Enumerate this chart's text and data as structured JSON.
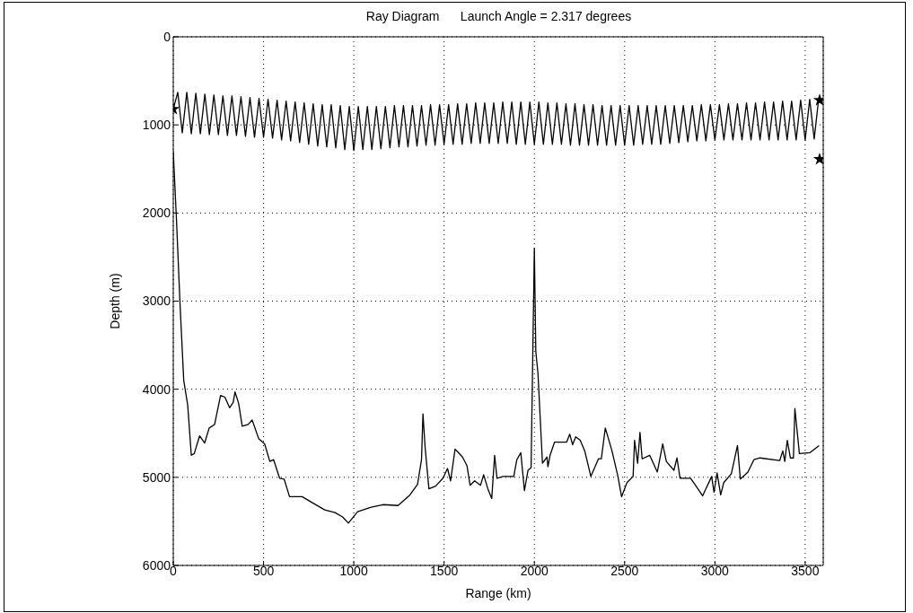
{
  "chart_data": {
    "type": "line",
    "title": "Ray Diagram      Launch Angle = 2.317 degrees",
    "xlabel": "Range (km)",
    "ylabel": "Depth (m)",
    "xlim": [
      0,
      3600
    ],
    "xticks": [
      0,
      500,
      1000,
      1500,
      2000,
      2500,
      3000,
      3500
    ],
    "ylim": [
      6000,
      0
    ],
    "yticks": [
      0,
      1000,
      2000,
      3000,
      4000,
      5000,
      6000
    ],
    "grid": true,
    "line_style": "solid",
    "series": [
      {
        "color": "#000000",
        "x": [
          0,
          25,
          50,
          75,
          100,
          125,
          150,
          175,
          200,
          225,
          250,
          275,
          300,
          325,
          350,
          375,
          400,
          425,
          450,
          475,
          500,
          525,
          550,
          575,
          600,
          625,
          650,
          675,
          700,
          725,
          750,
          775,
          800,
          825,
          850,
          875,
          900,
          925,
          950,
          975,
          1000,
          1025,
          1050,
          1075,
          1100,
          1125,
          1150,
          1175,
          1200,
          1225,
          1250,
          1275,
          1300,
          1325,
          1350,
          1375,
          1400,
          1425,
          1450,
          1475,
          1500,
          1525,
          1550,
          1575,
          1600,
          1625,
          1650,
          1675,
          1700,
          1725,
          1750,
          1775,
          1800,
          1825,
          1850,
          1875,
          1900,
          1925,
          1950,
          1975,
          2000,
          2025,
          2050,
          2075,
          2100,
          2125,
          2150,
          2175,
          2200,
          2225,
          2250,
          2275,
          2300,
          2325,
          2350,
          2375,
          2400,
          2425,
          2450,
          2475,
          2500,
          2525,
          2550,
          2575,
          2600,
          2625,
          2650,
          2675,
          2700,
          2725,
          2750,
          2775,
          2800,
          2825,
          2850,
          2875,
          2900,
          2925,
          2950,
          2975,
          3000,
          3025,
          3050,
          3075,
          3100,
          3125,
          3150,
          3175,
          3200,
          3225,
          3250,
          3275,
          3300,
          3325,
          3350,
          3375,
          3400,
          3425,
          3450,
          3475,
          3500,
          3525,
          3550,
          3575
        ],
        "values": [
          820,
          630,
          1090,
          630,
          1100,
          640,
          1100,
          650,
          1110,
          660,
          1110,
          670,
          1120,
          670,
          1120,
          680,
          1130,
          690,
          1140,
          700,
          1140,
          710,
          1150,
          720,
          1170,
          730,
          1180,
          740,
          1200,
          750,
          1220,
          760,
          1240,
          770,
          1250,
          770,
          1260,
          780,
          1280,
          790,
          1290,
          790,
          1280,
          790,
          1280,
          790,
          1270,
          790,
          1260,
          780,
          1250,
          780,
          1250,
          780,
          1240,
          780,
          1230,
          770,
          1230,
          770,
          1220,
          770,
          1220,
          760,
          1220,
          760,
          1210,
          750,
          1210,
          750,
          1210,
          750,
          1210,
          740,
          1210,
          740,
          1220,
          740,
          1220,
          740,
          1220,
          740,
          1220,
          750,
          1220,
          750,
          1220,
          760,
          1230,
          760,
          1230,
          770,
          1230,
          770,
          1230,
          780,
          1230,
          780,
          1230,
          780,
          1230,
          780,
          1230,
          780,
          1220,
          780,
          1220,
          780,
          1220,
          780,
          1210,
          780,
          1200,
          780,
          1190,
          780,
          1180,
          770,
          1180,
          770,
          1170,
          770,
          1170,
          760,
          1170,
          760,
          1170,
          750,
          1170,
          750,
          1170,
          740,
          1170,
          740,
          1170,
          730,
          1170,
          730,
          1170,
          720,
          1170,
          710,
          1160,
          700
        ]
      },
      {
        "color": "#000000",
        "x": [
          0,
          17,
          37,
          58,
          80,
          100,
          116,
          146,
          174,
          199,
          229,
          262,
          286,
          312,
          332,
          342,
          362,
          382,
          415,
          437,
          473,
          506,
          535,
          556,
          589,
          614,
          644,
          714,
          764,
          839,
          896,
          938,
          970,
          1021,
          1096,
          1162,
          1245,
          1311,
          1353,
          1375,
          1383,
          1395,
          1416,
          1453,
          1494,
          1519,
          1536,
          1561,
          1602,
          1627,
          1644,
          1669,
          1702,
          1719,
          1744,
          1764,
          1780,
          1793,
          1826,
          1886,
          1903,
          1925,
          1945,
          1965,
          1982,
          2000,
          2008,
          2020,
          2045,
          2070,
          2075,
          2087,
          2112,
          2179,
          2196,
          2212,
          2229,
          2254,
          2279,
          2313,
          2355,
          2371,
          2393,
          2430,
          2463,
          2483,
          2513,
          2547,
          2555,
          2572,
          2585,
          2597,
          2639,
          2681,
          2711,
          2731,
          2773,
          2790,
          2807,
          2865,
          2882,
          2932,
          2982,
          2995,
          3012,
          3032,
          3049,
          3091,
          3125,
          3141,
          3183,
          3216,
          3250,
          3359,
          3376,
          3387,
          3401,
          3418,
          3435,
          3443,
          3468,
          3527,
          3577
        ],
        "values": [
          1300,
          2040,
          3010,
          3900,
          4180,
          4750,
          4730,
          4530,
          4610,
          4440,
          4400,
          4070,
          4090,
          4210,
          4150,
          4030,
          4160,
          4420,
          4400,
          4350,
          4560,
          4620,
          4820,
          4800,
          5010,
          5020,
          5220,
          5220,
          5280,
          5370,
          5400,
          5450,
          5520,
          5390,
          5340,
          5310,
          5320,
          5200,
          5080,
          4800,
          4280,
          4660,
          5130,
          5100,
          5010,
          4900,
          5040,
          4680,
          4770,
          4870,
          5090,
          5040,
          5090,
          4970,
          5140,
          5240,
          4750,
          5010,
          4990,
          4990,
          4800,
          4720,
          5150,
          4920,
          4890,
          2400,
          3570,
          3820,
          4840,
          4770,
          4880,
          4750,
          4600,
          4600,
          4510,
          4630,
          4540,
          4580,
          4700,
          4990,
          4790,
          4790,
          4440,
          4700,
          4990,
          5220,
          5060,
          4990,
          4580,
          4840,
          4490,
          4790,
          4750,
          4940,
          4620,
          4820,
          4920,
          4780,
          5010,
          5010,
          5060,
          5210,
          4990,
          5170,
          4950,
          5200,
          5060,
          4960,
          4640,
          5020,
          4940,
          4800,
          4780,
          4810,
          4700,
          4820,
          4580,
          4780,
          4780,
          4220,
          4730,
          4720,
          4640
        ]
      },
      {
        "type": "scatter",
        "marker": "star",
        "color": "#000000",
        "x": [
          0,
          3580,
          3580
        ],
        "values": [
          820,
          720,
          1390
        ]
      }
    ]
  }
}
